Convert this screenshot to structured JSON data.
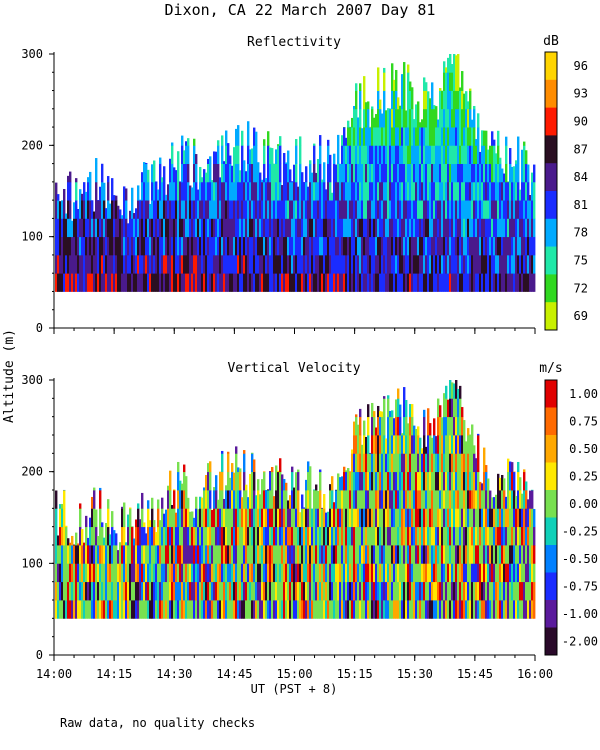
{
  "page": {
    "title": "Dixon, CA 22 March 2007  Day  81",
    "ylabel": "Altitude (m)",
    "xlabel": "UT  (PST + 8)",
    "footnote": "Raw data, no quality checks"
  },
  "chart_data": [
    {
      "type": "heatmap",
      "title": "Reflectivity",
      "colorbar_unit": "dB",
      "colorbar_ticks": [
        "96",
        "93",
        "90",
        "87",
        "84",
        "81",
        "78",
        "75",
        "72",
        "69"
      ],
      "colorbar_colors": [
        "#ffd400",
        "#ff8c00",
        "#ff1a00",
        "#2a0f22",
        "#4a1a8c",
        "#1a2cff",
        "#00aaff",
        "#20e8a8",
        "#30d820",
        "#c8f000"
      ],
      "x_ticks": [
        "14:00",
        "14:15",
        "14:30",
        "14:45",
        "15:00",
        "15:15",
        "15:30",
        "15:45",
        "16:00"
      ],
      "xlim_minutes": [
        0,
        120
      ],
      "y_ticks": [
        "300",
        "200",
        "100",
        "0"
      ],
      "ylim_m": [
        0,
        300
      ],
      "min_altitude_m": 40,
      "echo_top_m": [
        [
          0,
          160
        ],
        [
          5,
          140
        ],
        [
          10,
          155
        ],
        [
          15,
          140
        ],
        [
          20,
          140
        ],
        [
          25,
          160
        ],
        [
          30,
          180
        ],
        [
          35,
          175
        ],
        [
          40,
          185
        ],
        [
          45,
          200
        ],
        [
          50,
          190
        ],
        [
          55,
          185
        ],
        [
          60,
          175
        ],
        [
          65,
          185
        ],
        [
          70,
          170
        ],
        [
          75,
          240
        ],
        [
          80,
          250
        ],
        [
          85,
          270
        ],
        [
          90,
          250
        ],
        [
          95,
          245
        ],
        [
          100,
          290
        ],
        [
          105,
          220
        ],
        [
          110,
          190
        ],
        [
          115,
          180
        ],
        [
          120,
          160
        ]
      ]
    },
    {
      "type": "heatmap",
      "title": "Vertical Velocity",
      "colorbar_unit": "m/s",
      "colorbar_ticks": [
        "1.00",
        "0.75",
        "0.50",
        "0.25",
        "0.00",
        "-0.25",
        "-0.50",
        "-0.75",
        "-1.00",
        "-2.00"
      ],
      "colorbar_colors": [
        "#e00000",
        "#ff6a00",
        "#ffa800",
        "#ffe800",
        "#78e050",
        "#10d0b8",
        "#0080ff",
        "#1a2cff",
        "#5a1a9c",
        "#2a0a2a"
      ],
      "x_ticks": [
        "14:00",
        "14:15",
        "14:30",
        "14:45",
        "15:00",
        "15:15",
        "15:30",
        "15:45",
        "16:00"
      ],
      "xlim_minutes": [
        0,
        120
      ],
      "y_ticks": [
        "300",
        "200",
        "100",
        "0"
      ],
      "ylim_m": [
        0,
        300
      ],
      "min_altitude_m": 40,
      "echo_top_m": [
        [
          0,
          160
        ],
        [
          5,
          140
        ],
        [
          10,
          155
        ],
        [
          15,
          140
        ],
        [
          20,
          140
        ],
        [
          25,
          160
        ],
        [
          30,
          180
        ],
        [
          35,
          175
        ],
        [
          40,
          185
        ],
        [
          45,
          200
        ],
        [
          50,
          190
        ],
        [
          55,
          185
        ],
        [
          60,
          175
        ],
        [
          65,
          185
        ],
        [
          70,
          170
        ],
        [
          75,
          240
        ],
        [
          80,
          250
        ],
        [
          85,
          270
        ],
        [
          90,
          250
        ],
        [
          95,
          245
        ],
        [
          100,
          290
        ],
        [
          105,
          220
        ],
        [
          110,
          190
        ],
        [
          115,
          180
        ],
        [
          120,
          160
        ]
      ]
    }
  ]
}
